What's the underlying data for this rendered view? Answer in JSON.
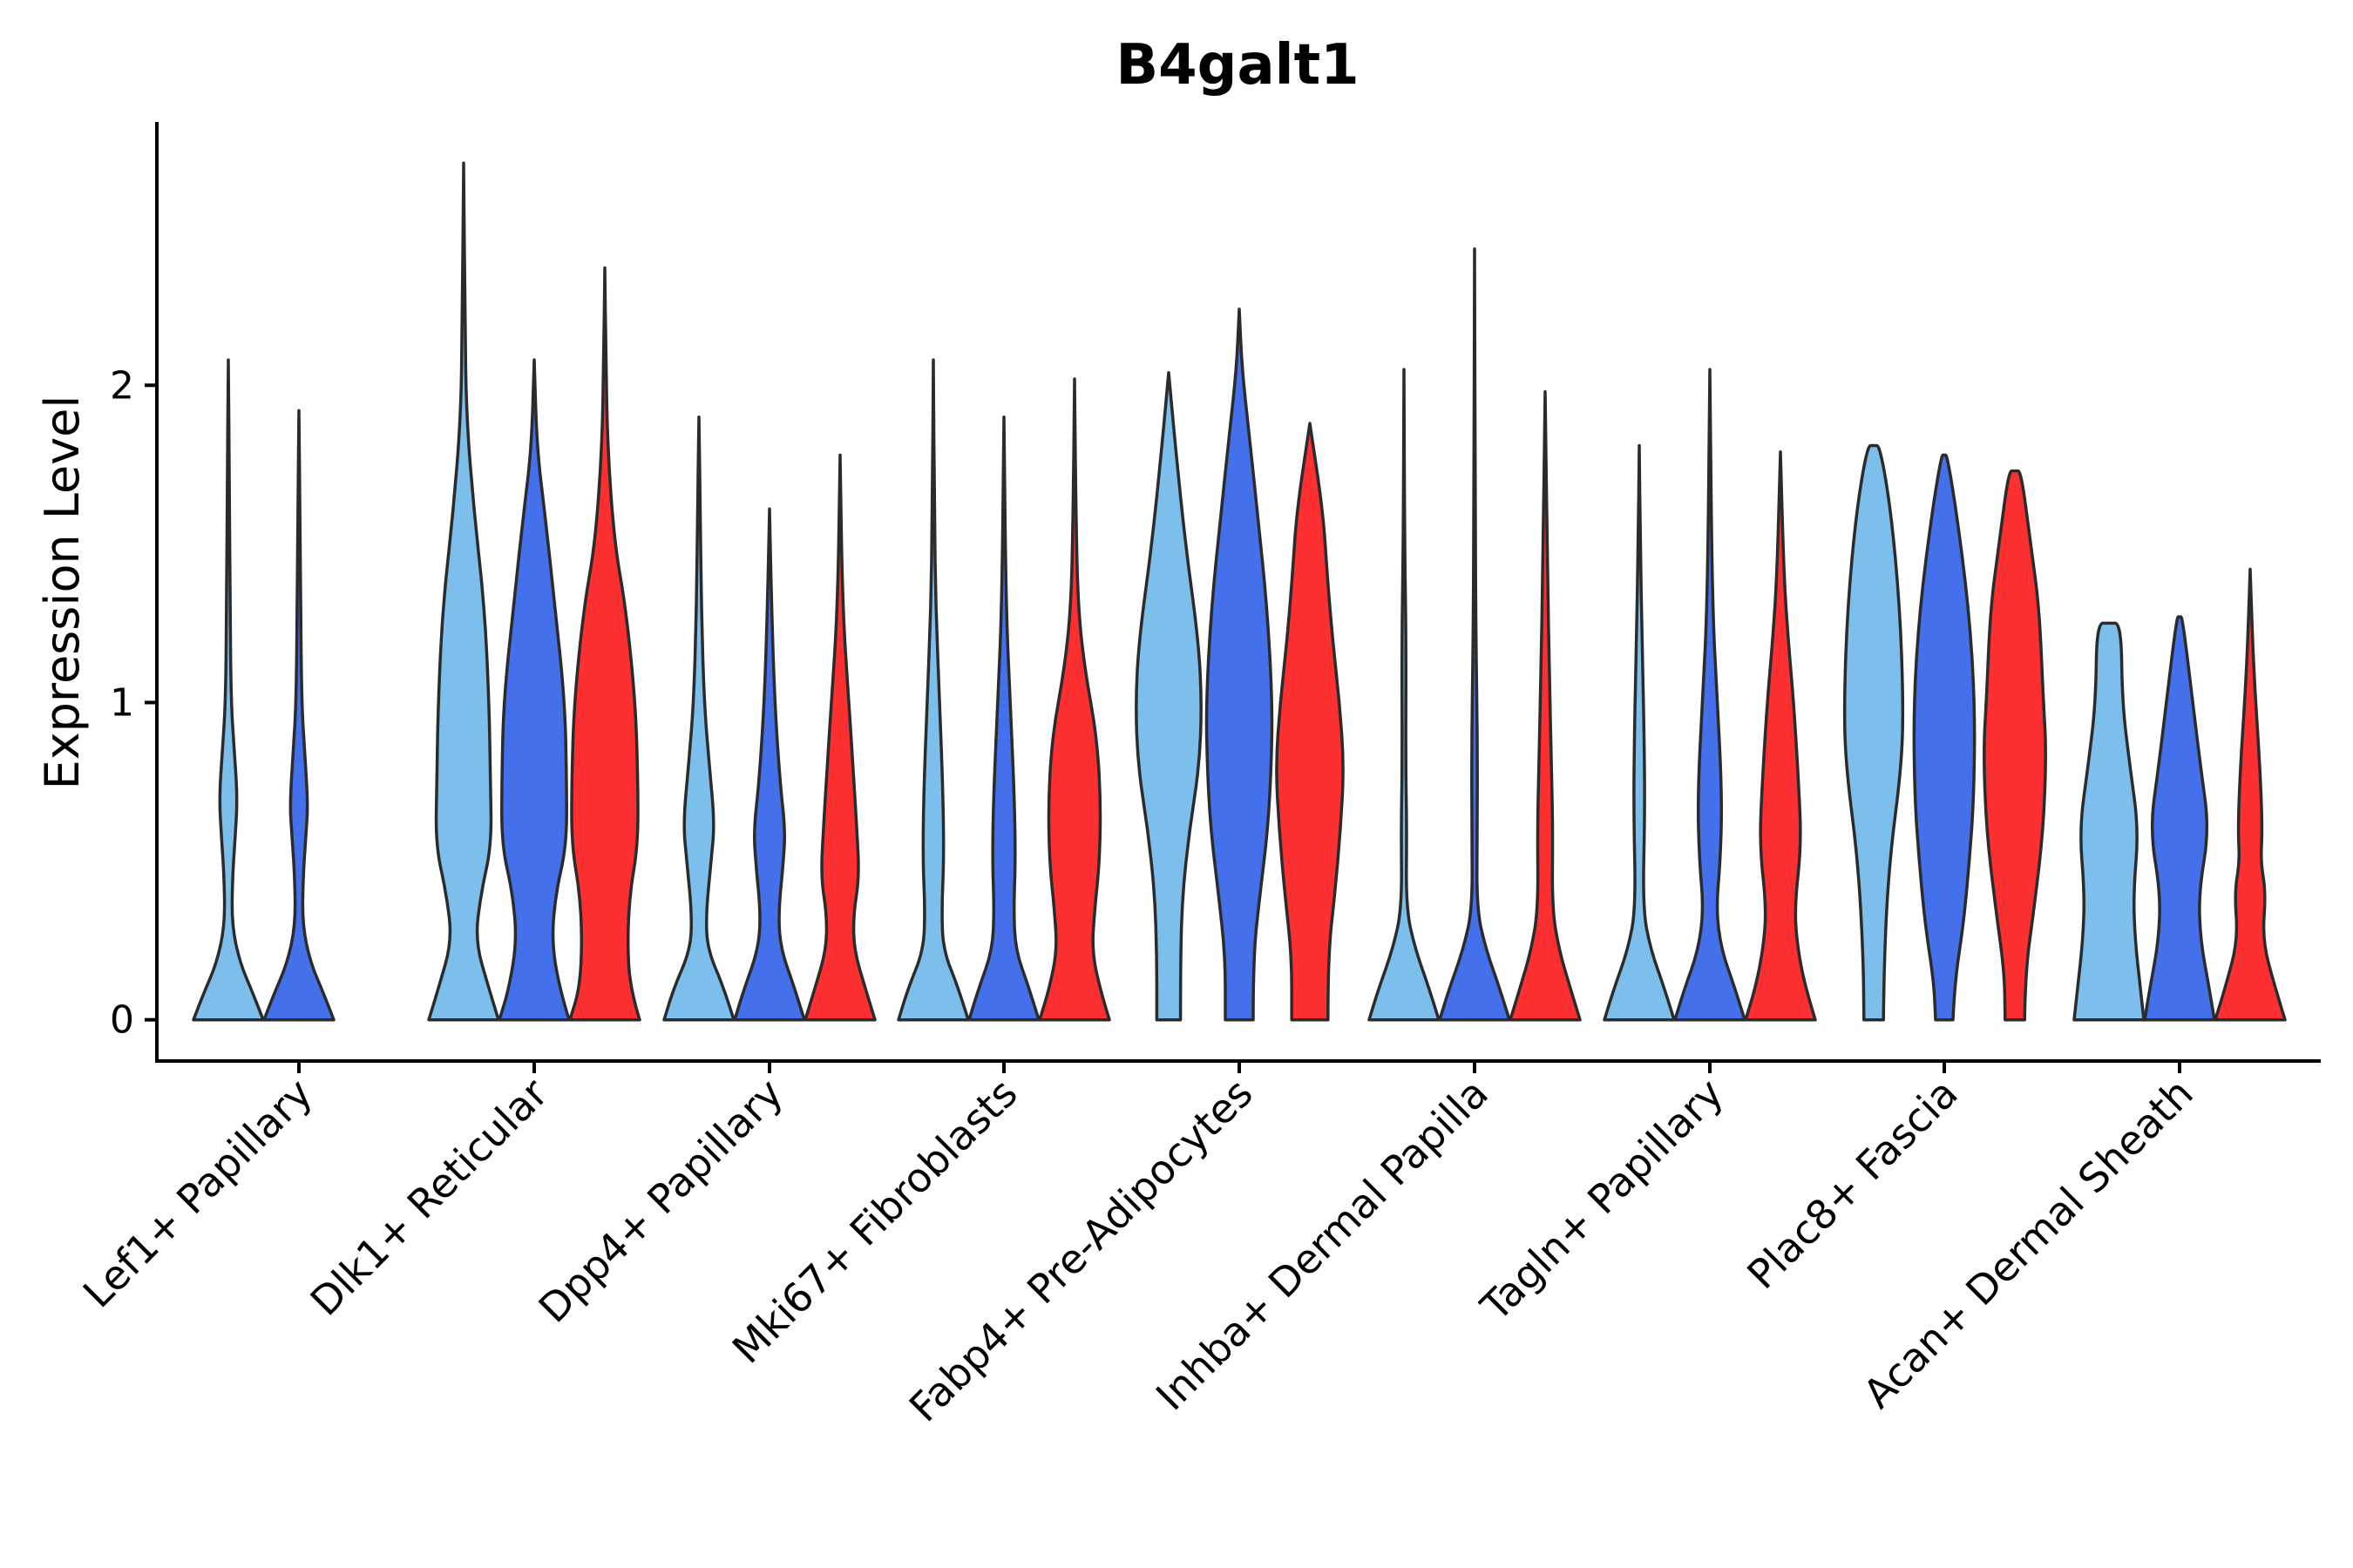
{
  "chart_data": {
    "type": "violin",
    "title": "B4galt1",
    "xlabel": "",
    "ylabel": "Expression Level",
    "ylim": [
      -0.13,
      2.83
    ],
    "yticks": [
      0,
      1,
      2
    ],
    "grid": false,
    "legend": "none",
    "groups": [
      "group 1",
      "group 2",
      "group 3"
    ],
    "colors": {
      "group 1": "#7dbfec",
      "group 2": "#4470ec",
      "group 3": "#fe2f31"
    },
    "categories": [
      "Lef1+ Papillary",
      "Dlk1+ Reticular",
      "Dpp4+ Papillary",
      "Mki67+ Fibroblasts",
      "Fabp4+ Pre-Adipocytes",
      "Inhba+ Dermal Papilla",
      "Tagln+ Papillary",
      "Plac8+ Fascia",
      "Acan+ Dermal Sheath"
    ],
    "violins": [
      {
        "category": 0,
        "group": "group 1",
        "max": 2.08,
        "width": [
          [
            0,
            1
          ],
          [
            0.08,
            0.72
          ],
          [
            0.18,
            0.33
          ],
          [
            0.3,
            0.1
          ],
          [
            0.45,
            0.12
          ],
          [
            0.58,
            0.2
          ],
          [
            0.7,
            0.26
          ],
          [
            0.85,
            0.17
          ],
          [
            1.0,
            0.08
          ],
          [
            1.3,
            0.05
          ],
          [
            1.7,
            0.03
          ],
          [
            2.08,
            0
          ]
        ]
      },
      {
        "category": 0,
        "group": "group 2",
        "max": 1.92,
        "width": [
          [
            0,
            1
          ],
          [
            0.08,
            0.72
          ],
          [
            0.18,
            0.33
          ],
          [
            0.3,
            0.1
          ],
          [
            0.45,
            0.12
          ],
          [
            0.58,
            0.2
          ],
          [
            0.68,
            0.26
          ],
          [
            0.85,
            0.16
          ],
          [
            1.0,
            0.08
          ],
          [
            1.3,
            0.05
          ],
          [
            1.6,
            0.03
          ],
          [
            1.92,
            0
          ]
        ]
      },
      {
        "category": 1,
        "group": "group 1",
        "max": 2.7,
        "width": [
          [
            0,
            1
          ],
          [
            0.1,
            0.72
          ],
          [
            0.25,
            0.33
          ],
          [
            0.4,
            0.5
          ],
          [
            0.55,
            0.8
          ],
          [
            0.75,
            0.77
          ],
          [
            1.0,
            0.73
          ],
          [
            1.3,
            0.6
          ],
          [
            1.6,
            0.3
          ],
          [
            1.9,
            0.08
          ],
          [
            2.2,
            0.04
          ],
          [
            2.7,
            0
          ]
        ]
      },
      {
        "category": 1,
        "group": "group 2",
        "max": 2.08,
        "width": [
          [
            0,
            1
          ],
          [
            0.1,
            0.72
          ],
          [
            0.25,
            0.5
          ],
          [
            0.4,
            0.62
          ],
          [
            0.55,
            0.93
          ],
          [
            0.75,
            0.93
          ],
          [
            1.0,
            0.88
          ],
          [
            1.3,
            0.6
          ],
          [
            1.6,
            0.3
          ],
          [
            1.8,
            0.08
          ],
          [
            2.08,
            0
          ]
        ]
      },
      {
        "category": 1,
        "group": "group 3",
        "max": 2.37,
        "width": [
          [
            0,
            1
          ],
          [
            0.1,
            0.72
          ],
          [
            0.25,
            0.65
          ],
          [
            0.4,
            0.72
          ],
          [
            0.55,
            0.95
          ],
          [
            0.75,
            0.95
          ],
          [
            1.0,
            0.88
          ],
          [
            1.3,
            0.6
          ],
          [
            1.5,
            0.28
          ],
          [
            1.8,
            0.08
          ],
          [
            2.1,
            0.03
          ],
          [
            2.37,
            0
          ]
        ]
      },
      {
        "category": 2,
        "group": "group 1",
        "max": 1.9,
        "width": [
          [
            0,
            1
          ],
          [
            0.1,
            0.72
          ],
          [
            0.22,
            0.25
          ],
          [
            0.33,
            0.2
          ],
          [
            0.5,
            0.35
          ],
          [
            0.62,
            0.45
          ],
          [
            0.8,
            0.3
          ],
          [
            1.0,
            0.15
          ],
          [
            1.3,
            0.07
          ],
          [
            1.6,
            0.04
          ],
          [
            1.9,
            0
          ]
        ]
      },
      {
        "category": 2,
        "group": "group 2",
        "max": 1.61,
        "width": [
          [
            0,
            1
          ],
          [
            0.1,
            0.72
          ],
          [
            0.22,
            0.33
          ],
          [
            0.33,
            0.25
          ],
          [
            0.5,
            0.4
          ],
          [
            0.6,
            0.45
          ],
          [
            0.75,
            0.3
          ],
          [
            1.0,
            0.15
          ],
          [
            1.3,
            0.06
          ],
          [
            1.61,
            0
          ]
        ]
      },
      {
        "category": 2,
        "group": "group 3",
        "max": 1.78,
        "width": [
          [
            0,
            1
          ],
          [
            0.1,
            0.72
          ],
          [
            0.22,
            0.4
          ],
          [
            0.33,
            0.38
          ],
          [
            0.45,
            0.55
          ],
          [
            0.6,
            0.48
          ],
          [
            0.8,
            0.37
          ],
          [
            1.0,
            0.25
          ],
          [
            1.3,
            0.07
          ],
          [
            1.78,
            0
          ]
        ]
      },
      {
        "category": 3,
        "group": "group 1",
        "max": 2.08,
        "width": [
          [
            0,
            1
          ],
          [
            0.1,
            0.72
          ],
          [
            0.22,
            0.28
          ],
          [
            0.35,
            0.24
          ],
          [
            0.5,
            0.3
          ],
          [
            0.7,
            0.28
          ],
          [
            1.0,
            0.18
          ],
          [
            1.3,
            0.07
          ],
          [
            1.6,
            0.03
          ],
          [
            2.08,
            0
          ]
        ]
      },
      {
        "category": 3,
        "group": "group 2",
        "max": 1.9,
        "width": [
          [
            0,
            1
          ],
          [
            0.1,
            0.72
          ],
          [
            0.22,
            0.33
          ],
          [
            0.35,
            0.28
          ],
          [
            0.5,
            0.33
          ],
          [
            0.7,
            0.3
          ],
          [
            1.0,
            0.18
          ],
          [
            1.3,
            0.06
          ],
          [
            1.9,
            0
          ]
        ]
      },
      {
        "category": 3,
        "group": "group 3",
        "max": 2.02,
        "width": [
          [
            0,
            1
          ],
          [
            0.1,
            0.72
          ],
          [
            0.22,
            0.5
          ],
          [
            0.35,
            0.58
          ],
          [
            0.5,
            0.72
          ],
          [
            0.7,
            0.75
          ],
          [
            0.9,
            0.63
          ],
          [
            1.1,
            0.3
          ],
          [
            1.3,
            0.1
          ],
          [
            1.6,
            0.04
          ],
          [
            2.02,
            0
          ]
        ]
      },
      {
        "category": 4,
        "group": "group 1",
        "max": 2.04,
        "width": [
          [
            0,
            0.34
          ],
          [
            0.2,
            0.34
          ],
          [
            0.4,
            0.4
          ],
          [
            0.6,
            0.6
          ],
          [
            0.8,
            0.88
          ],
          [
            1.0,
            0.95
          ],
          [
            1.2,
            0.85
          ],
          [
            1.5,
            0.48
          ],
          [
            1.8,
            0.2
          ],
          [
            2.04,
            0
          ]
        ]
      },
      {
        "category": 4,
        "group": "group 2",
        "max": 2.24,
        "width": [
          [
            0,
            0.4
          ],
          [
            0.2,
            0.4
          ],
          [
            0.4,
            0.6
          ],
          [
            0.6,
            0.82
          ],
          [
            0.8,
            0.92
          ],
          [
            1.0,
            0.95
          ],
          [
            1.3,
            0.8
          ],
          [
            1.6,
            0.52
          ],
          [
            1.85,
            0.28
          ],
          [
            2.05,
            0.08
          ],
          [
            2.24,
            0
          ]
        ]
      },
      {
        "category": 4,
        "group": "group 3",
        "max": 1.88,
        "width": [
          [
            0,
            0.52
          ],
          [
            0.2,
            0.52
          ],
          [
            0.4,
            0.72
          ],
          [
            0.6,
            0.88
          ],
          [
            0.8,
            0.98
          ],
          [
            1.0,
            0.85
          ],
          [
            1.2,
            0.65
          ],
          [
            1.4,
            0.5
          ],
          [
            1.6,
            0.38
          ],
          [
            1.88,
            0
          ]
        ]
      },
      {
        "category": 5,
        "group": "group 1",
        "max": 2.05,
        "width": [
          [
            0,
            1
          ],
          [
            0.1,
            0.72
          ],
          [
            0.22,
            0.33
          ],
          [
            0.35,
            0.06
          ],
          [
            0.6,
            0.08
          ],
          [
            0.8,
            0.05
          ],
          [
            1.2,
            0.06
          ],
          [
            1.5,
            0.02
          ],
          [
            2.05,
            0
          ]
        ]
      },
      {
        "category": 5,
        "group": "group 2",
        "max": 2.43,
        "width": [
          [
            0,
            1
          ],
          [
            0.1,
            0.72
          ],
          [
            0.22,
            0.33
          ],
          [
            0.35,
            0.06
          ],
          [
            0.6,
            0.08
          ],
          [
            0.9,
            0.08
          ],
          [
            1.2,
            0.04
          ],
          [
            1.6,
            0.02
          ],
          [
            2.43,
            0
          ]
        ]
      },
      {
        "category": 5,
        "group": "group 3",
        "max": 1.98,
        "width": [
          [
            0,
            1
          ],
          [
            0.1,
            0.72
          ],
          [
            0.22,
            0.4
          ],
          [
            0.35,
            0.2
          ],
          [
            0.6,
            0.22
          ],
          [
            0.8,
            0.18
          ],
          [
            1.1,
            0.12
          ],
          [
            1.4,
            0.07
          ],
          [
            1.98,
            0
          ]
        ]
      },
      {
        "category": 6,
        "group": "group 1",
        "max": 1.81,
        "width": [
          [
            0,
            1
          ],
          [
            0.1,
            0.72
          ],
          [
            0.22,
            0.33
          ],
          [
            0.35,
            0.1
          ],
          [
            0.65,
            0.16
          ],
          [
            0.9,
            0.14
          ],
          [
            1.2,
            0.08
          ],
          [
            1.5,
            0.03
          ],
          [
            1.81,
            0
          ]
        ]
      },
      {
        "category": 6,
        "group": "group 2",
        "max": 2.05,
        "width": [
          [
            0,
            1
          ],
          [
            0.1,
            0.72
          ],
          [
            0.22,
            0.33
          ],
          [
            0.35,
            0.18
          ],
          [
            0.5,
            0.3
          ],
          [
            0.7,
            0.35
          ],
          [
            1.0,
            0.22
          ],
          [
            1.3,
            0.07
          ],
          [
            2.05,
            0
          ]
        ]
      },
      {
        "category": 6,
        "group": "group 3",
        "max": 1.79,
        "width": [
          [
            0,
            1
          ],
          [
            0.1,
            0.72
          ],
          [
            0.22,
            0.5
          ],
          [
            0.35,
            0.4
          ],
          [
            0.55,
            0.6
          ],
          [
            0.75,
            0.52
          ],
          [
            1.0,
            0.38
          ],
          [
            1.2,
            0.22
          ],
          [
            1.4,
            0.1
          ],
          [
            1.79,
            0
          ]
        ]
      },
      {
        "category": 7,
        "group": "group 1",
        "max": 1.81,
        "width": [
          [
            0,
            0.28
          ],
          [
            0.2,
            0.3
          ],
          [
            0.5,
            0.45
          ],
          [
            0.8,
            0.8
          ],
          [
            1.0,
            0.85
          ],
          [
            1.3,
            0.75
          ],
          [
            1.6,
            0.5
          ],
          [
            1.81,
            0.18
          ],
          [
            1.81,
            0
          ]
        ]
      },
      {
        "category": 7,
        "group": "group 2",
        "max": 1.78,
        "width": [
          [
            0,
            0.25
          ],
          [
            0.12,
            0.3
          ],
          [
            0.3,
            0.55
          ],
          [
            0.5,
            0.72
          ],
          [
            0.7,
            0.85
          ],
          [
            1.0,
            0.88
          ],
          [
            1.3,
            0.7
          ],
          [
            1.6,
            0.35
          ],
          [
            1.78,
            0.08
          ],
          [
            1.78,
            0
          ]
        ]
      },
      {
        "category": 7,
        "group": "group 3",
        "max": 1.73,
        "width": [
          [
            0,
            0.28
          ],
          [
            0.15,
            0.3
          ],
          [
            0.35,
            0.55
          ],
          [
            0.6,
            0.82
          ],
          [
            0.85,
            0.9
          ],
          [
            1.0,
            0.82
          ],
          [
            1.3,
            0.7
          ],
          [
            1.5,
            0.45
          ],
          [
            1.73,
            0.18
          ],
          [
            1.73,
            0
          ]
        ]
      },
      {
        "category": 8,
        "group": "group 1",
        "max": 1.25,
        "width": [
          [
            0,
            1
          ],
          [
            0.1,
            0.9
          ],
          [
            0.25,
            0.75
          ],
          [
            0.4,
            0.7
          ],
          [
            0.6,
            0.85
          ],
          [
            0.8,
            0.6
          ],
          [
            1.0,
            0.38
          ],
          [
            1.25,
            0.35
          ],
          [
            1.25,
            0
          ]
        ]
      },
      {
        "category": 8,
        "group": "group 2",
        "max": 1.27,
        "width": [
          [
            0,
            1
          ],
          [
            0.1,
            0.85
          ],
          [
            0.25,
            0.6
          ],
          [
            0.4,
            0.55
          ],
          [
            0.6,
            0.85
          ],
          [
            0.8,
            0.6
          ],
          [
            1.0,
            0.38
          ],
          [
            1.27,
            0.08
          ],
          [
            1.27,
            0
          ]
        ]
      },
      {
        "category": 8,
        "group": "group 3",
        "max": 1.42,
        "width": [
          [
            0,
            1
          ],
          [
            0.1,
            0.72
          ],
          [
            0.25,
            0.35
          ],
          [
            0.4,
            0.45
          ],
          [
            0.5,
            0.3
          ],
          [
            0.6,
            0.35
          ],
          [
            0.8,
            0.28
          ],
          [
            1.1,
            0.1
          ],
          [
            1.42,
            0
          ]
        ]
      }
    ]
  }
}
